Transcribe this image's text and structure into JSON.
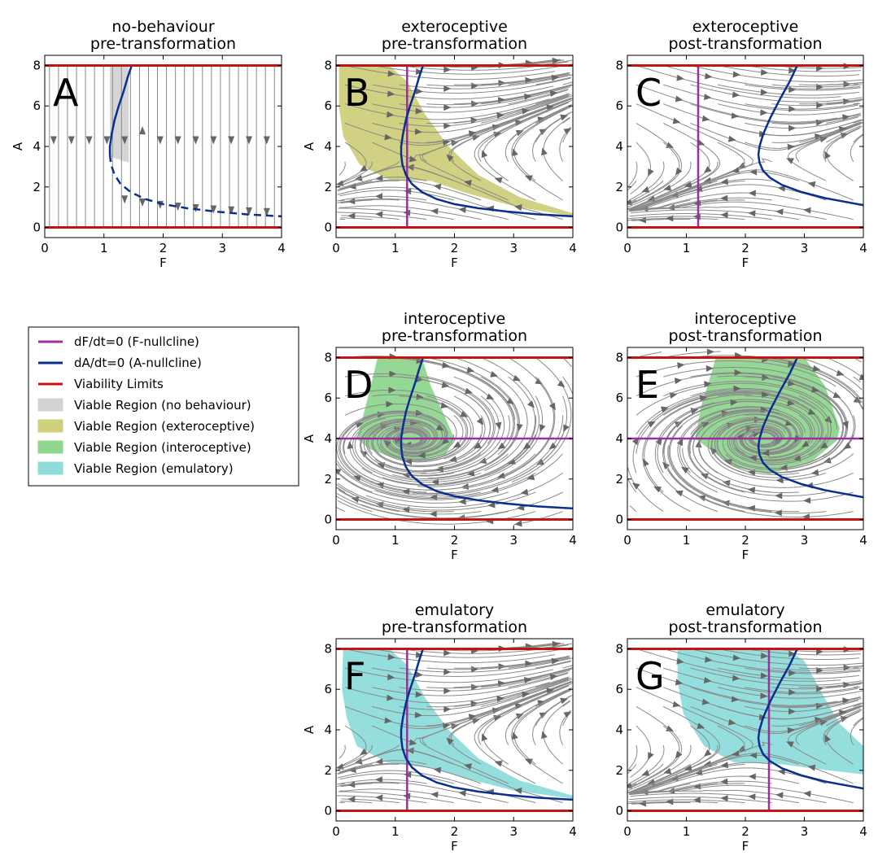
{
  "colors": {
    "f_nullcline": "#9b2f9b",
    "a_nullcline": "#0b2f8f",
    "viability": "#c41414",
    "no_behaviour": "#d3d3d3",
    "exteroceptive": "#cfcf7c",
    "interoceptive": "#8fd68f",
    "emulatory": "#8fdcdc",
    "streamlines": "#8a8a8a"
  },
  "legend": {
    "entries": [
      {
        "label": "dF/dt=0 (F-nullcline)",
        "kind": "line",
        "color": "#9b2f9b"
      },
      {
        "label": "dA/dt=0 (A-nullcline)",
        "kind": "line",
        "color": "#0b2f8f"
      },
      {
        "label": "Viability Limits",
        "kind": "line",
        "color": "#c41414"
      },
      {
        "label": "Viable Region (no behaviour)",
        "kind": "patch",
        "color": "#d3d3d3"
      },
      {
        "label": "Viable Region (exteroceptive)",
        "kind": "patch",
        "color": "#cfcf7c"
      },
      {
        "label": "Viable Region (interoceptive)",
        "kind": "patch",
        "color": "#8fd68f"
      },
      {
        "label": "Viable Region (emulatory)",
        "kind": "patch",
        "color": "#8fdcdc"
      }
    ]
  },
  "chart_data": [
    {
      "id": "A",
      "type": "vector-field",
      "title": [
        "no-behaviour",
        "pre-transformation"
      ],
      "letter": "A",
      "xlabel": "F",
      "ylabel": "A",
      "xlim": [
        0,
        4
      ],
      "ylim": [
        -0.5,
        8.5
      ],
      "xticks": [
        "0",
        "1",
        "2",
        "3",
        "4"
      ],
      "yticks": [
        "0",
        "2",
        "4",
        "6",
        "8"
      ],
      "show_ylabel": true,
      "viability_limits": [
        0,
        8
      ],
      "f_nullcline": null,
      "a_nullcline_shift": 0,
      "a_nullcline_style": "solid-upper-dashed-lower",
      "region": "no_behaviour",
      "field": "vertical"
    },
    {
      "id": "B",
      "type": "vector-field",
      "title": [
        "exteroceptive",
        "pre-transformation"
      ],
      "letter": "B",
      "xlabel": "F",
      "ylabel": "A",
      "xlim": [
        0,
        4
      ],
      "ylim": [
        -0.5,
        8.5
      ],
      "xticks": [
        "0",
        "1",
        "2",
        "3",
        "4"
      ],
      "yticks": [
        "0",
        "2",
        "4",
        "6",
        "8"
      ],
      "show_ylabel": true,
      "viability_limits": [
        0,
        8
      ],
      "f_nullcline": {
        "orientation": "vertical",
        "value": 1.2
      },
      "a_nullcline_shift": 0,
      "a_nullcline_style": "solid",
      "region": "exteroceptive",
      "field": "saddle"
    },
    {
      "id": "C",
      "type": "vector-field",
      "title": [
        "exteroceptive",
        "post-transformation"
      ],
      "letter": "C",
      "xlabel": "F",
      "ylabel": "A",
      "xlim": [
        0,
        4
      ],
      "ylim": [
        -0.5,
        8.5
      ],
      "xticks": [
        "0",
        "1",
        "2",
        "3",
        "4"
      ],
      "yticks": [
        "0",
        "2",
        "4",
        "6",
        "8"
      ],
      "show_ylabel": false,
      "viability_limits": [
        0,
        8
      ],
      "f_nullcline": {
        "orientation": "vertical",
        "value": 1.2
      },
      "a_nullcline_shift": 1.2,
      "a_nullcline_style": "solid",
      "region": null,
      "field": "saddle-post"
    },
    {
      "id": "D",
      "type": "vector-field",
      "title": [
        "interoceptive",
        "pre-transformation"
      ],
      "letter": "D",
      "xlabel": "F",
      "ylabel": "A",
      "xlim": [
        0,
        4
      ],
      "ylim": [
        -0.5,
        8.5
      ],
      "xticks": [
        "0",
        "1",
        "2",
        "3",
        "4"
      ],
      "yticks": [
        "0",
        "2",
        "4",
        "6",
        "8"
      ],
      "show_ylabel": true,
      "viability_limits": [
        0,
        8
      ],
      "f_nullcline": {
        "orientation": "horizontal",
        "value": 4
      },
      "a_nullcline_shift": 0,
      "a_nullcline_style": "solid",
      "region": "interoceptive",
      "field": "spiral"
    },
    {
      "id": "E",
      "type": "vector-field",
      "title": [
        "interoceptive",
        "post-transformation"
      ],
      "letter": "E",
      "xlabel": "F",
      "ylabel": "A",
      "xlim": [
        0,
        4
      ],
      "ylim": [
        -0.5,
        8.5
      ],
      "xticks": [
        "0",
        "1",
        "2",
        "3",
        "4"
      ],
      "yticks": [
        "0",
        "2",
        "4",
        "6",
        "8"
      ],
      "show_ylabel": false,
      "viability_limits": [
        0,
        8
      ],
      "f_nullcline": {
        "orientation": "horizontal",
        "value": 4
      },
      "a_nullcline_shift": 1.2,
      "a_nullcline_style": "solid",
      "region": "interoceptive",
      "field": "spiral-post"
    },
    {
      "id": "F",
      "type": "vector-field",
      "title": [
        "emulatory",
        "pre-transformation"
      ],
      "letter": "F",
      "xlabel": "F",
      "ylabel": "A",
      "xlim": [
        0,
        4
      ],
      "ylim": [
        -0.5,
        8.5
      ],
      "xticks": [
        "0",
        "1",
        "2",
        "3",
        "4"
      ],
      "yticks": [
        "0",
        "2",
        "4",
        "6",
        "8"
      ],
      "show_ylabel": true,
      "viability_limits": [
        0,
        8
      ],
      "f_nullcline": {
        "orientation": "vertical",
        "value": 1.2
      },
      "a_nullcline_shift": 0,
      "a_nullcline_style": "solid",
      "region": "emulatory",
      "field": "saddle"
    },
    {
      "id": "G",
      "type": "vector-field",
      "title": [
        "emulatory",
        "post-transformation"
      ],
      "letter": "G",
      "xlabel": "F",
      "ylabel": "A",
      "xlim": [
        0,
        4
      ],
      "ylim": [
        -0.5,
        8.5
      ],
      "xticks": [
        "0",
        "1",
        "2",
        "3",
        "4"
      ],
      "yticks": [
        "0",
        "2",
        "4",
        "6",
        "8"
      ],
      "show_ylabel": false,
      "viability_limits": [
        0,
        8
      ],
      "f_nullcline": {
        "orientation": "vertical",
        "value": 2.4
      },
      "a_nullcline_shift": 1.2,
      "a_nullcline_style": "solid",
      "region": "emulatory",
      "field": "saddle-post"
    }
  ]
}
